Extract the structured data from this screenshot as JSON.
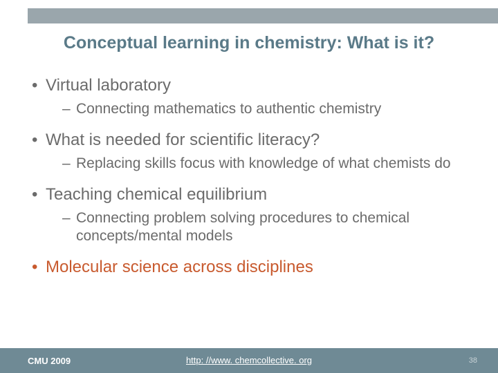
{
  "colors": {
    "top_bar": "#9aa6ac",
    "title": "#5a7a88",
    "body_text": "#6b6b6b",
    "accent": "#c85a2e",
    "footer_bg": "#6f8a95",
    "footer_text": "#ffffff",
    "page_num": "#c8d2d6",
    "link": "#ffffff"
  },
  "layout": {
    "title_fontsize": 25,
    "l1_fontsize": 24,
    "l2_fontsize": 21,
    "footer_fontsize": 13,
    "page_num_fontsize": 11
  },
  "title": "Conceptual learning in chemistry: What is it?",
  "bullets": [
    {
      "text": "Virtual laboratory",
      "accent": false,
      "sub": [
        {
          "text": "Connecting mathematics to authentic chemistry"
        }
      ]
    },
    {
      "text": "What is needed for scientific literacy?",
      "accent": false,
      "sub": [
        {
          "text": "Replacing skills focus with knowledge of what chemists do"
        }
      ]
    },
    {
      "text": "Teaching chemical equilibrium",
      "accent": false,
      "sub": [
        {
          "text": "Connecting problem solving procedures to chemical concepts/mental models"
        }
      ]
    },
    {
      "text": "Molecular science across disciplines",
      "accent": true,
      "sub": []
    }
  ],
  "footer": {
    "left": "CMU 2009",
    "link_text": "http: //www. chemcollective. org",
    "page_num": "38"
  }
}
